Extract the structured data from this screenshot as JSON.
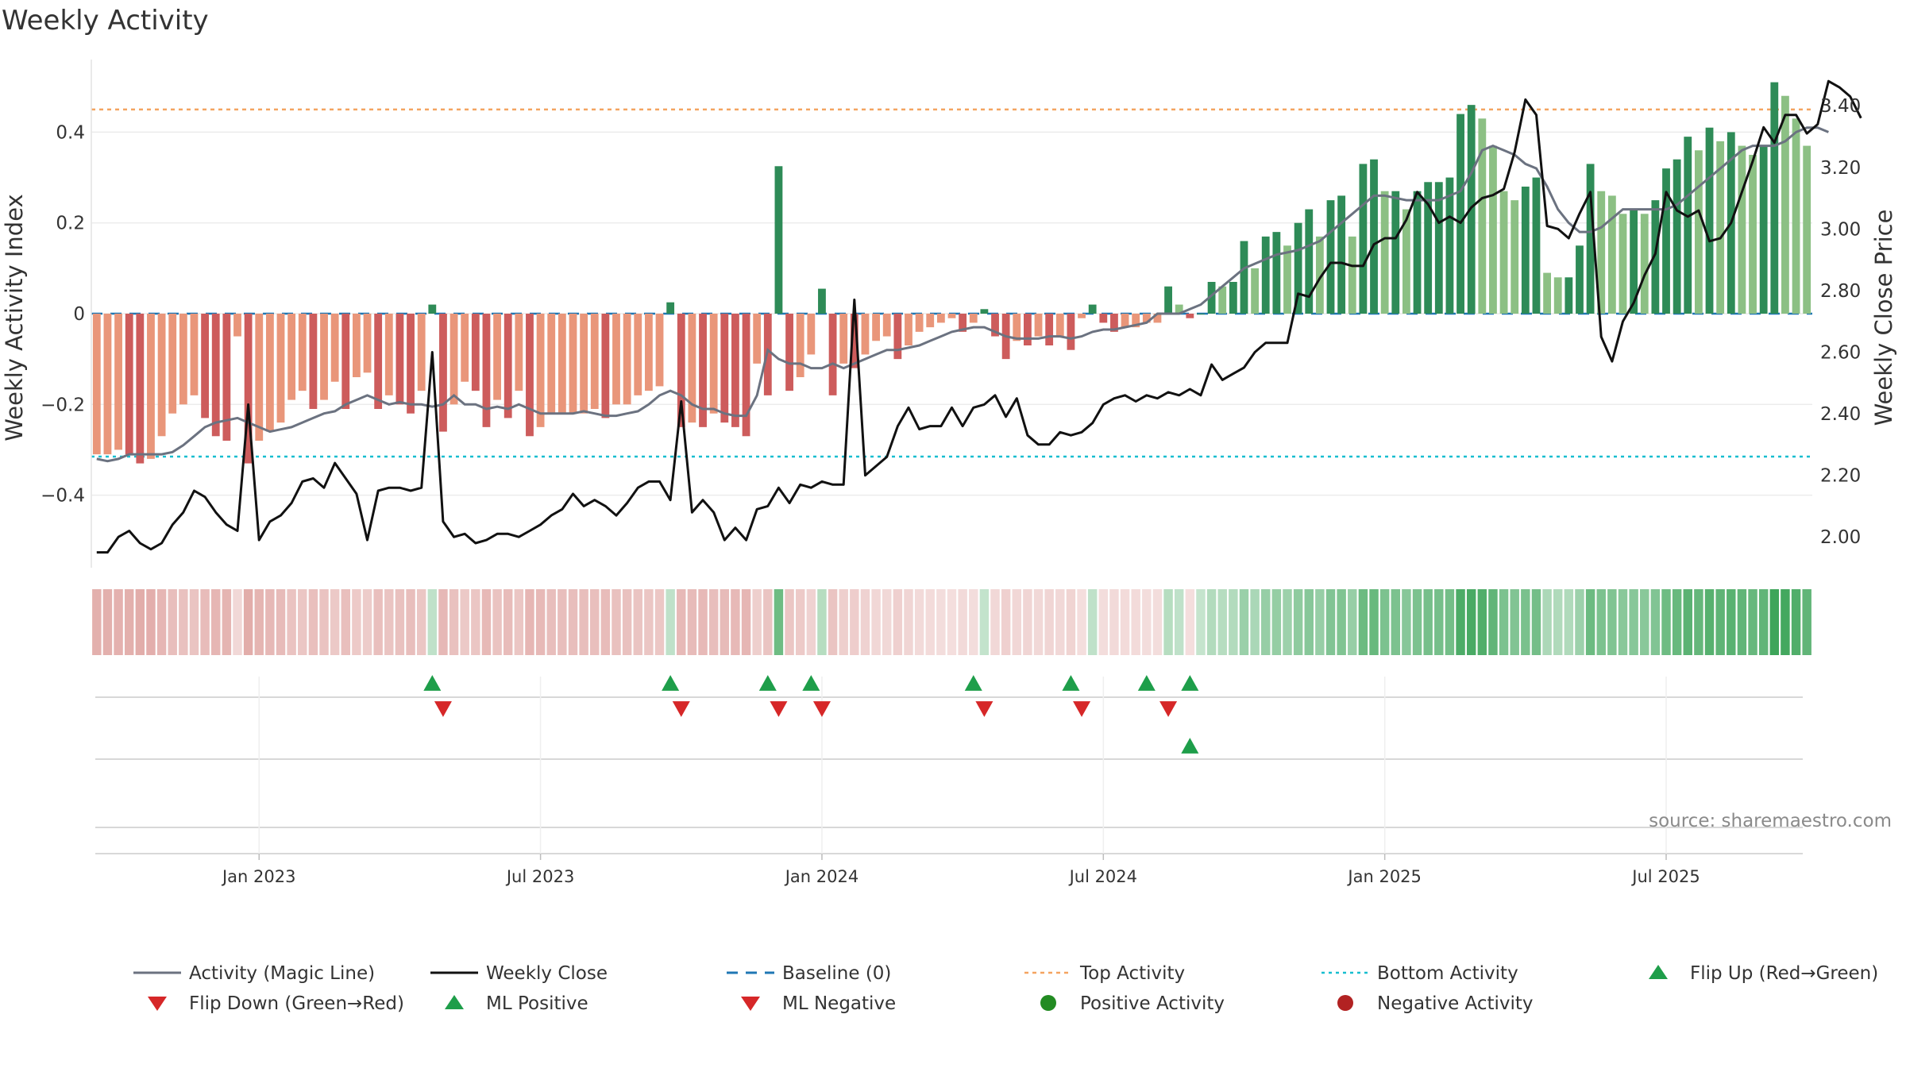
{
  "chart_data": {
    "type": "bar",
    "title": "Weekly Activity",
    "ylabel": "Weekly Activity Index",
    "y2label": "Weekly Close Price",
    "ylim": [
      -0.56,
      0.56
    ],
    "y2lim": [
      1.9,
      3.55
    ],
    "y_ticks": [
      {
        "v": 0.4,
        "label": "0.4"
      },
      {
        "v": 0.2,
        "label": "0.2"
      },
      {
        "v": 0,
        "label": "0"
      },
      {
        "v": -0.2,
        "label": "−0.2"
      },
      {
        "v": -0.4,
        "label": "−0.4"
      }
    ],
    "y2_ticks": [
      {
        "v": 3.4,
        "label": "3.40"
      },
      {
        "v": 3.2,
        "label": "3.20"
      },
      {
        "v": 3.0,
        "label": "3.00"
      },
      {
        "v": 2.8,
        "label": "2.80"
      },
      {
        "v": 2.6,
        "label": "2.60"
      },
      {
        "v": 2.4,
        "label": "2.40"
      },
      {
        "v": 2.2,
        "label": "2.20"
      },
      {
        "v": 2.0,
        "label": "2.00"
      }
    ],
    "x_ticks": [
      {
        "i": 15,
        "label": "Jan 2023"
      },
      {
        "i": 41,
        "label": "Jul 2023"
      },
      {
        "i": 67,
        "label": "Jan 2024"
      },
      {
        "i": 93,
        "label": "Jul 2024"
      },
      {
        "i": 119,
        "label": "Jan 2025"
      },
      {
        "i": 145,
        "label": "Jul 2025"
      }
    ],
    "top_activity": 0.45,
    "bottom_activity": -0.315,
    "activity": [
      -0.31,
      -0.31,
      -0.3,
      -0.31,
      -0.33,
      -0.32,
      -0.27,
      -0.22,
      -0.2,
      -0.18,
      -0.23,
      -0.27,
      -0.28,
      -0.05,
      -0.33,
      -0.28,
      -0.26,
      -0.24,
      -0.19,
      -0.17,
      -0.21,
      -0.19,
      -0.15,
      -0.21,
      -0.14,
      -0.13,
      -0.21,
      -0.18,
      -0.2,
      -0.22,
      -0.17,
      0.02,
      -0.26,
      -0.2,
      -0.15,
      -0.17,
      -0.25,
      -0.19,
      -0.23,
      -0.17,
      -0.27,
      -0.25,
      -0.22,
      -0.22,
      -0.22,
      -0.22,
      -0.21,
      -0.23,
      -0.2,
      -0.2,
      -0.18,
      -0.17,
      -0.16,
      0.025,
      -0.25,
      -0.24,
      -0.25,
      -0.22,
      -0.24,
      -0.25,
      -0.27,
      -0.11,
      -0.18,
      0.325,
      -0.17,
      -0.14,
      -0.09,
      0.055,
      -0.18,
      -0.11,
      -0.12,
      -0.09,
      -0.06,
      -0.05,
      -0.1,
      -0.07,
      -0.04,
      -0.03,
      -0.02,
      -0.01,
      -0.04,
      -0.02,
      0.01,
      -0.05,
      -0.1,
      -0.06,
      -0.07,
      -0.05,
      -0.07,
      -0.05,
      -0.08,
      -0.01,
      0.02,
      -0.02,
      -0.04,
      -0.03,
      -0.03,
      -0.02,
      -0.02,
      0.06,
      0.02,
      -0.01,
      0.0,
      0.07,
      0.06,
      0.07,
      0.16,
      0.1,
      0.17,
      0.18,
      0.15,
      0.2,
      0.23,
      0.17,
      0.25,
      0.26,
      0.17,
      0.33,
      0.34,
      0.27,
      0.27,
      0.23,
      0.27,
      0.29,
      0.29,
      0.3,
      0.44,
      0.46,
      0.43,
      0.37,
      0.27,
      0.25,
      0.28,
      0.3,
      0.09,
      0.08,
      0.08,
      0.15,
      0.33,
      0.27,
      0.26,
      0.22,
      0.23,
      0.22,
      0.25,
      0.32,
      0.34,
      0.39,
      0.36,
      0.41,
      0.38,
      0.4,
      0.37,
      0.35,
      0.37,
      0.51,
      0.48,
      0.43,
      0.37
    ],
    "magic_line": [
      -0.32,
      -0.325,
      -0.32,
      -0.31,
      -0.31,
      -0.31,
      -0.31,
      -0.305,
      -0.29,
      -0.27,
      -0.25,
      -0.24,
      -0.235,
      -0.23,
      -0.24,
      -0.25,
      -0.26,
      -0.255,
      -0.25,
      -0.24,
      -0.23,
      -0.22,
      -0.215,
      -0.2,
      -0.19,
      -0.18,
      -0.19,
      -0.2,
      -0.195,
      -0.2,
      -0.2,
      -0.205,
      -0.2,
      -0.18,
      -0.2,
      -0.2,
      -0.21,
      -0.205,
      -0.21,
      -0.2,
      -0.21,
      -0.22,
      -0.22,
      -0.22,
      -0.22,
      -0.215,
      -0.22,
      -0.225,
      -0.225,
      -0.22,
      -0.215,
      -0.2,
      -0.18,
      -0.17,
      -0.18,
      -0.2,
      -0.21,
      -0.21,
      -0.22,
      -0.225,
      -0.225,
      -0.18,
      -0.08,
      -0.1,
      -0.11,
      -0.11,
      -0.12,
      -0.12,
      -0.11,
      -0.12,
      -0.11,
      -0.1,
      -0.09,
      -0.08,
      -0.08,
      -0.075,
      -0.07,
      -0.06,
      -0.05,
      -0.04,
      -0.035,
      -0.03,
      -0.03,
      -0.04,
      -0.05,
      -0.055,
      -0.055,
      -0.055,
      -0.05,
      -0.05,
      -0.055,
      -0.05,
      -0.04,
      -0.035,
      -0.035,
      -0.03,
      -0.025,
      -0.02,
      0.0,
      0.0,
      0.0,
      0.01,
      0.02,
      0.04,
      0.06,
      0.08,
      0.1,
      0.11,
      0.12,
      0.13,
      0.135,
      0.14,
      0.15,
      0.16,
      0.18,
      0.2,
      0.22,
      0.24,
      0.26,
      0.26,
      0.255,
      0.25,
      0.25,
      0.25,
      0.25,
      0.26,
      0.27,
      0.31,
      0.36,
      0.37,
      0.36,
      0.35,
      0.33,
      0.32,
      0.28,
      0.23,
      0.2,
      0.18,
      0.18,
      0.19,
      0.21,
      0.23,
      0.23,
      0.23,
      0.23,
      0.23,
      0.24,
      0.26,
      0.28,
      0.3,
      0.32,
      0.34,
      0.36,
      0.37,
      0.37,
      0.37,
      0.38,
      0.4,
      0.41,
      0.41,
      0.4
    ],
    "weekly_close": [
      1.95,
      1.95,
      2.0,
      2.02,
      1.98,
      1.96,
      1.98,
      2.04,
      2.08,
      2.15,
      2.13,
      2.08,
      2.04,
      2.02,
      2.43,
      1.99,
      2.05,
      2.07,
      2.11,
      2.18,
      2.19,
      2.16,
      2.24,
      2.19,
      2.14,
      1.99,
      2.15,
      2.16,
      2.16,
      2.15,
      2.16,
      2.6,
      2.05,
      2.0,
      2.01,
      1.98,
      1.99,
      2.01,
      2.01,
      2.0,
      2.02,
      2.04,
      2.07,
      2.09,
      2.14,
      2.1,
      2.12,
      2.1,
      2.07,
      2.11,
      2.16,
      2.18,
      2.18,
      2.12,
      2.44,
      2.08,
      2.12,
      2.08,
      1.99,
      2.03,
      1.99,
      2.09,
      2.1,
      2.16,
      2.11,
      2.17,
      2.16,
      2.18,
      2.17,
      2.17,
      2.77,
      2.2,
      2.23,
      2.26,
      2.36,
      2.42,
      2.35,
      2.36,
      2.36,
      2.42,
      2.36,
      2.42,
      2.43,
      2.46,
      2.39,
      2.45,
      2.33,
      2.3,
      2.3,
      2.34,
      2.33,
      2.34,
      2.37,
      2.43,
      2.45,
      2.46,
      2.44,
      2.46,
      2.45,
      2.47,
      2.46,
      2.48,
      2.46,
      2.56,
      2.51,
      2.53,
      2.55,
      2.6,
      2.63,
      2.63,
      2.63,
      2.79,
      2.78,
      2.84,
      2.89,
      2.89,
      2.88,
      2.88,
      2.95,
      2.97,
      2.97,
      3.03,
      3.12,
      3.08,
      3.02,
      3.04,
      3.02,
      3.07,
      3.1,
      3.11,
      3.13,
      3.25,
      3.42,
      3.37,
      3.01,
      3.0,
      2.97,
      3.05,
      3.12,
      2.65,
      2.57,
      2.7,
      2.76,
      2.85,
      2.92,
      3.12,
      3.06,
      3.04,
      3.06,
      2.96,
      2.97,
      3.02,
      3.12,
      3.22,
      3.33,
      3.28,
      3.37,
      3.37,
      3.31,
      3.34,
      3.48,
      3.46,
      3.43,
      3.36
    ],
    "flip_up_i": [
      31,
      53,
      62,
      66,
      81,
      90,
      97,
      101
    ],
    "flip_down_i": [
      32,
      54,
      63,
      67,
      82,
      91,
      99
    ],
    "ml_positive_i": [
      101
    ],
    "legend": [
      {
        "key": "magic",
        "label": "Activity (Magic Line)"
      },
      {
        "key": "close",
        "label": "Weekly Close"
      },
      {
        "key": "baseline",
        "label": "Baseline (0)"
      },
      {
        "key": "top",
        "label": "Top Activity"
      },
      {
        "key": "bottom",
        "label": "Bottom Activity"
      },
      {
        "key": "flipup",
        "label": "Flip Up (Red→Green)"
      },
      {
        "key": "flipdown",
        "label": "Flip Down (Green→Red)"
      },
      {
        "key": "mlpos",
        "label": "ML Positive"
      },
      {
        "key": "mlneg",
        "label": "ML Negative"
      },
      {
        "key": "posact",
        "label": "Positive Activity"
      },
      {
        "key": "negact",
        "label": "Negative Activity"
      }
    ],
    "colors": {
      "pos_dark": "#2e8b57",
      "pos_light": "#8cc084",
      "neg_dark": "#cd5c5c",
      "neg_light": "#e9967a",
      "magic_line": "#6b7280",
      "close_line": "#111111",
      "baseline": "#1f77b4",
      "top": "#f4a460",
      "bottom": "#17becf",
      "up_marker": "#1e9e4a",
      "down_marker": "#d62728",
      "pos_dot": "#228b22",
      "neg_dot": "#b22222"
    }
  },
  "source_note": "source: sharemaestro.com"
}
